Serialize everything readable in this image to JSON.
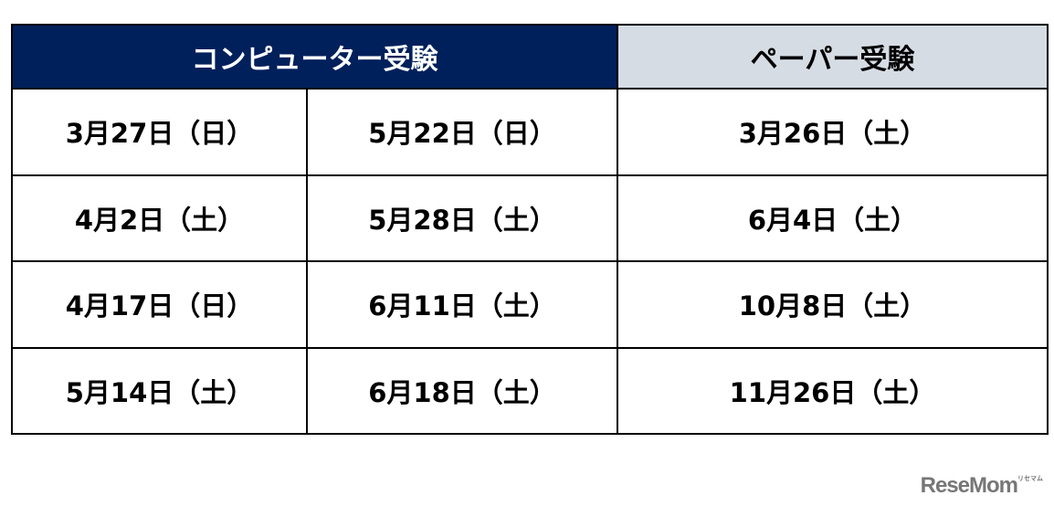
{
  "header": {
    "computer": "コンピューター受験",
    "paper": "ペーパー受験"
  },
  "colors": {
    "computer_header_bg": "#00205b",
    "paper_header_bg": "#d6dce4"
  },
  "rows": [
    {
      "cbt1": "3月27日（日）",
      "cbt2": "5月22日（日）",
      "paper": "3月26日（土）"
    },
    {
      "cbt1": "4月2日（土）",
      "cbt2": "5月28日（土）",
      "paper": "6月4日（土）"
    },
    {
      "cbt1": "4月17日（日）",
      "cbt2": "6月11日（土）",
      "paper": "10月8日（土）"
    },
    {
      "cbt1": "5月14日（土）",
      "cbt2": "6月18日（土）",
      "paper": "11月26日（土）"
    }
  ],
  "logo": {
    "text": "ReseMom",
    "ruby": "リセマム"
  }
}
